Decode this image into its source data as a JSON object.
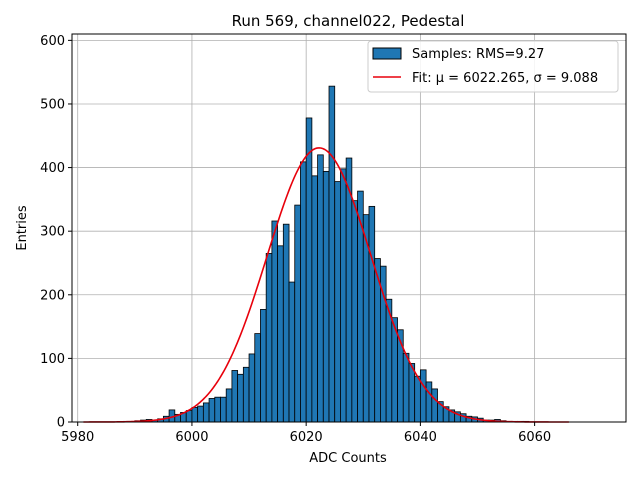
{
  "chart_data": {
    "type": "histogram",
    "title": "Run 569, channel022, Pedestal",
    "xlabel": "ADC Counts",
    "ylabel": "Entries",
    "xlim": [
      5979,
      6076
    ],
    "ylim": [
      0,
      610
    ],
    "xticks": [
      5980,
      6000,
      6020,
      6040,
      6060
    ],
    "yticks": [
      0,
      100,
      200,
      300,
      400,
      500,
      600
    ],
    "grid": true,
    "legend_position": "top-right",
    "bins": {
      "start": 5981,
      "width": 1,
      "counts": [
        0,
        0,
        0,
        0,
        0,
        0,
        0,
        1,
        1,
        2,
        3,
        4,
        3,
        5,
        9,
        19,
        12,
        15,
        18,
        23,
        25,
        30,
        37,
        39,
        39,
        52,
        81,
        75,
        86,
        107,
        139,
        177,
        265,
        316,
        277,
        311,
        220,
        341,
        409,
        478,
        387,
        420,
        394,
        528,
        378,
        398,
        415,
        348,
        363,
        326,
        339,
        257,
        245,
        193,
        164,
        145,
        108,
        92,
        72,
        82,
        63,
        52,
        32,
        24,
        19,
        16,
        13,
        9,
        8,
        6,
        3,
        3,
        4,
        2,
        1,
        1,
        1,
        1,
        0,
        0,
        0,
        0,
        0,
        0,
        0
      ]
    },
    "series": [
      {
        "name": "Samples: RMS=9.27",
        "kind": "histogram",
        "color": "#1f77b4",
        "edge_color": "#000000"
      },
      {
        "name": "Fit: μ = 6022.265, σ = 9.088",
        "kind": "gaussian_fit",
        "color": "#e8000b",
        "mu": 6022.265,
        "sigma": 9.088,
        "amplitude": 431,
        "x_range": [
          5981,
          6066
        ]
      }
    ]
  }
}
